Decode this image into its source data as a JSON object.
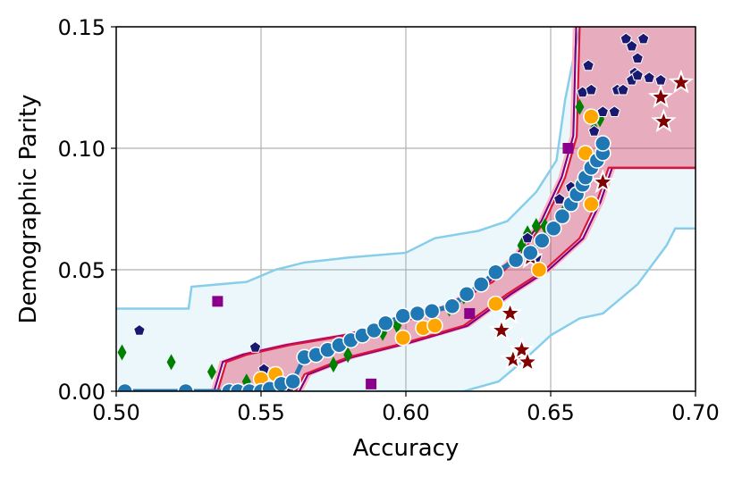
{
  "chart_data": {
    "type": "scatter",
    "title": "",
    "xlabel": "Accuracy",
    "ylabel": "Demographic Parity",
    "xlim": [
      0.5,
      0.7
    ],
    "ylim": [
      0.0,
      0.15
    ],
    "xticks": [
      0.5,
      0.55,
      0.6,
      0.65,
      0.7
    ],
    "xtick_labels": [
      "0.50",
      "0.55",
      "0.60",
      "0.65",
      "0.70"
    ],
    "yticks": [
      0.0,
      0.05,
      0.1,
      0.15
    ],
    "ytick_labels": [
      "0.00",
      "0.05",
      "0.10",
      "0.15"
    ],
    "grid": true,
    "legend": "none",
    "colors": {
      "outer_band": "#87ceeb",
      "inner_band": "#dc143c",
      "dark_band": "#800080",
      "pink_band": "#ffb6c1",
      "main_series": "#1f77b4",
      "orange": "#ffa500",
      "green": "#008000",
      "navy": "#191970",
      "maroon": "#800000",
      "purple": "#8b008b"
    },
    "bands": {
      "outer": {
        "upper": [
          [
            0.5,
            0.034
          ],
          [
            0.525,
            0.034
          ],
          [
            0.526,
            0.043
          ],
          [
            0.545,
            0.045
          ],
          [
            0.555,
            0.05
          ],
          [
            0.565,
            0.053
          ],
          [
            0.58,
            0.055
          ],
          [
            0.6,
            0.057
          ],
          [
            0.61,
            0.063
          ],
          [
            0.625,
            0.066
          ],
          [
            0.635,
            0.07
          ],
          [
            0.645,
            0.082
          ],
          [
            0.652,
            0.095
          ],
          [
            0.655,
            0.12
          ],
          [
            0.66,
            0.15
          ]
        ],
        "lower": [
          [
            0.5,
            0.0
          ],
          [
            0.62,
            0.0
          ],
          [
            0.632,
            0.004
          ],
          [
            0.64,
            0.012
          ],
          [
            0.65,
            0.023
          ],
          [
            0.66,
            0.03
          ],
          [
            0.668,
            0.032
          ],
          [
            0.68,
            0.044
          ],
          [
            0.69,
            0.06
          ],
          [
            0.693,
            0.067
          ],
          [
            0.7,
            0.067
          ]
        ],
        "right_edge_upper": [
          [
            0.66,
            0.15
          ],
          [
            0.7,
            0.15
          ]
        ]
      },
      "inner": {
        "upper": [
          [
            0.535,
            0.0
          ],
          [
            0.538,
            0.012
          ],
          [
            0.545,
            0.015
          ],
          [
            0.56,
            0.019
          ],
          [
            0.58,
            0.023
          ],
          [
            0.6,
            0.029
          ],
          [
            0.615,
            0.035
          ],
          [
            0.63,
            0.045
          ],
          [
            0.64,
            0.057
          ],
          [
            0.648,
            0.07
          ],
          [
            0.655,
            0.088
          ],
          [
            0.659,
            0.105
          ],
          [
            0.66,
            0.15
          ]
        ],
        "lower": [
          [
            0.562,
            0.0
          ],
          [
            0.565,
            0.007
          ],
          [
            0.58,
            0.014
          ],
          [
            0.6,
            0.02
          ],
          [
            0.62,
            0.027
          ],
          [
            0.635,
            0.04
          ],
          [
            0.648,
            0.05
          ],
          [
            0.66,
            0.063
          ],
          [
            0.666,
            0.078
          ],
          [
            0.67,
            0.092
          ],
          [
            0.7,
            0.092
          ]
        ],
        "right_edge_upper": [
          [
            0.66,
            0.15
          ],
          [
            0.7,
            0.15
          ]
        ]
      }
    },
    "series": [
      {
        "marker": "circle",
        "color": "#1f77b4",
        "connected": true,
        "points": [
          [
            0.503,
            0.0
          ],
          [
            0.524,
            0.0
          ],
          [
            0.539,
            0.0
          ],
          [
            0.542,
            0.0
          ],
          [
            0.546,
            0.0
          ],
          [
            0.55,
            0.0
          ],
          [
            0.553,
            0.001
          ],
          [
            0.557,
            0.003
          ],
          [
            0.561,
            0.004
          ],
          [
            0.565,
            0.014
          ],
          [
            0.569,
            0.015
          ],
          [
            0.573,
            0.017
          ],
          [
            0.577,
            0.019
          ],
          [
            0.581,
            0.021
          ],
          [
            0.585,
            0.023
          ],
          [
            0.589,
            0.025
          ],
          [
            0.593,
            0.028
          ],
          [
            0.599,
            0.031
          ],
          [
            0.604,
            0.032
          ],
          [
            0.609,
            0.033
          ],
          [
            0.616,
            0.035
          ],
          [
            0.621,
            0.04
          ],
          [
            0.626,
            0.044
          ],
          [
            0.631,
            0.049
          ],
          [
            0.638,
            0.054
          ],
          [
            0.643,
            0.057
          ],
          [
            0.647,
            0.062
          ],
          [
            0.651,
            0.067
          ],
          [
            0.654,
            0.072
          ],
          [
            0.657,
            0.077
          ],
          [
            0.659,
            0.081
          ],
          [
            0.661,
            0.085
          ],
          [
            0.662,
            0.088
          ],
          [
            0.664,
            0.092
          ],
          [
            0.666,
            0.095
          ],
          [
            0.668,
            0.098
          ],
          [
            0.668,
            0.102
          ]
        ]
      },
      {
        "marker": "circle",
        "color": "#ffa500",
        "points": [
          [
            0.55,
            0.005
          ],
          [
            0.555,
            0.007
          ],
          [
            0.599,
            0.022
          ],
          [
            0.606,
            0.026
          ],
          [
            0.61,
            0.027
          ],
          [
            0.631,
            0.036
          ],
          [
            0.646,
            0.05
          ],
          [
            0.664,
            0.077
          ],
          [
            0.662,
            0.098
          ],
          [
            0.664,
            0.113
          ]
        ]
      },
      {
        "marker": "diamond",
        "color": "#008000",
        "points": [
          [
            0.502,
            0.016
          ],
          [
            0.519,
            0.012
          ],
          [
            0.533,
            0.008
          ],
          [
            0.545,
            0.004
          ],
          [
            0.55,
            0.007
          ],
          [
            0.575,
            0.011
          ],
          [
            0.58,
            0.015
          ],
          [
            0.592,
            0.024
          ],
          [
            0.597,
            0.027
          ],
          [
            0.615,
            0.034
          ],
          [
            0.62,
            0.039
          ],
          [
            0.64,
            0.06
          ],
          [
            0.642,
            0.065
          ],
          [
            0.645,
            0.068
          ],
          [
            0.648,
            0.068
          ],
          [
            0.655,
            0.075
          ],
          [
            0.658,
            0.08
          ],
          [
            0.662,
            0.085
          ],
          [
            0.665,
            0.108
          ],
          [
            0.667,
            0.112
          ],
          [
            0.66,
            0.117
          ]
        ]
      },
      {
        "marker": "pentagon",
        "color": "#191970",
        "points": [
          [
            0.508,
            0.025
          ],
          [
            0.548,
            0.018
          ],
          [
            0.551,
            0.009
          ],
          [
            0.56,
            0.002
          ],
          [
            0.642,
            0.063
          ],
          [
            0.645,
            0.055
          ],
          [
            0.653,
            0.079
          ],
          [
            0.657,
            0.084
          ],
          [
            0.661,
            0.123
          ],
          [
            0.663,
            0.134
          ],
          [
            0.664,
            0.124
          ],
          [
            0.668,
            0.115
          ],
          [
            0.673,
            0.124
          ],
          [
            0.676,
            0.145
          ],
          [
            0.678,
            0.142
          ],
          [
            0.68,
            0.137
          ],
          [
            0.682,
            0.145
          ],
          [
            0.679,
            0.131
          ],
          [
            0.678,
            0.128
          ],
          [
            0.68,
            0.13
          ],
          [
            0.684,
            0.129
          ],
          [
            0.688,
            0.128
          ],
          [
            0.675,
            0.124
          ],
          [
            0.672,
            0.115
          ],
          [
            0.665,
            0.107
          ]
        ]
      },
      {
        "marker": "star",
        "color": "#800000",
        "points": [
          [
            0.633,
            0.025
          ],
          [
            0.636,
            0.032
          ],
          [
            0.637,
            0.013
          ],
          [
            0.64,
            0.017
          ],
          [
            0.642,
            0.012
          ],
          [
            0.643,
            0.055
          ],
          [
            0.668,
            0.086
          ],
          [
            0.688,
            0.121
          ],
          [
            0.689,
            0.111
          ],
          [
            0.695,
            0.127
          ]
        ]
      },
      {
        "marker": "square",
        "color": "#8b008b",
        "points": [
          [
            0.535,
            0.037
          ],
          [
            0.588,
            0.003
          ],
          [
            0.622,
            0.032
          ],
          [
            0.656,
            0.1
          ]
        ]
      }
    ]
  }
}
